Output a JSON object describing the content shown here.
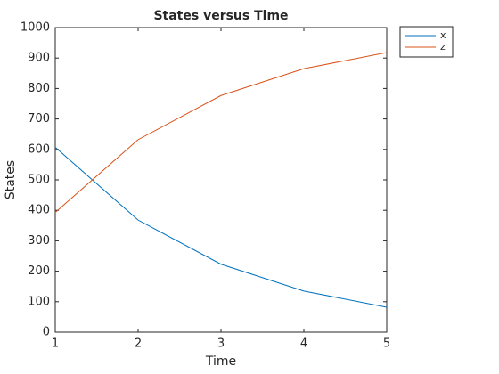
{
  "chart_data": {
    "type": "line",
    "title": "States versus Time",
    "x_label": "Time",
    "y_label": "States",
    "x": [
      1,
      2,
      3,
      4,
      5
    ],
    "series": [
      {
        "name": "x",
        "color": "#0072bd",
        "values": [
          607,
          368,
          223,
          135,
          82
        ]
      },
      {
        "name": "z",
        "color": "#d95319",
        "values": [
          393,
          632,
          777,
          865,
          918
        ]
      }
    ],
    "xlim": [
      1,
      5
    ],
    "xticks": [
      1,
      2,
      3,
      4,
      5
    ],
    "ylim": [
      0,
      1000
    ],
    "yticks": [
      0,
      100,
      200,
      300,
      400,
      500,
      600,
      700,
      800,
      900,
      1000
    ],
    "legend": "outside-top-right",
    "grid": false
  }
}
